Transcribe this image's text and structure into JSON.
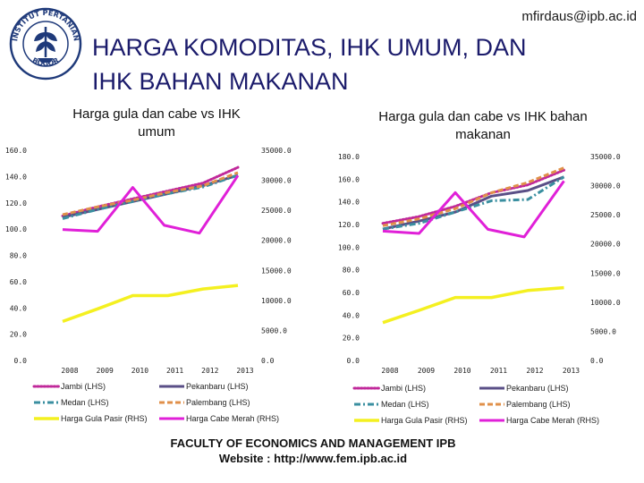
{
  "header": {
    "email": "mfirdaus@ipb.ac.id",
    "title_line1": "HARGA KOMODITAS, IHK UMUM, DAN",
    "title_line2": "IHK BAHAN MAKANAN",
    "logo_text": "INSTITUT PERTANIAN BOGOR"
  },
  "footer": {
    "line1": "FACULTY OF ECONOMICS AND MANAGEMENT IPB",
    "line2": "Website : http://www.fem.ipb.ac.id"
  },
  "colors": {
    "jambi": "#c0289a",
    "pekanbaru": "#5a4f87",
    "medan": "#3a8fa0",
    "palembang": "#e0904a",
    "gula": "#f4f020",
    "cabe": "#e020d8"
  },
  "chart_data": [
    {
      "type": "line",
      "title_line1": "Harga gula dan cabe vs IHK",
      "title_line2": "umum",
      "categories": [
        "2008",
        "2009",
        "2010",
        "2011",
        "2012",
        "2013"
      ],
      "y_left": {
        "min": 0,
        "max": 160,
        "ticks": [
          "0.0",
          "20.0",
          "40.0",
          "60.0",
          "80.0",
          "100.0",
          "120.0",
          "140.0",
          "160.0"
        ]
      },
      "y_right": {
        "min": 0,
        "max": 35000,
        "ticks": [
          "0.0",
          "5000.0",
          "10000.0",
          "15000.0",
          "20000.0",
          "25000.0",
          "30000.0",
          "35000.0"
        ]
      },
      "legend_placement": "bottom",
      "series": [
        {
          "name": "Jambi (LHS)",
          "key": "jambi",
          "axis": "left",
          "style": "dotted",
          "x": [
            2008,
            2009,
            2010,
            2011,
            2012,
            2013
          ],
          "values": [
            110,
            117,
            123,
            129,
            135,
            147
          ]
        },
        {
          "name": "Pekanbaru (LHS)",
          "key": "pekanbaru",
          "axis": "left",
          "style": "solid",
          "x": [
            2008,
            2009,
            2010,
            2011,
            2012,
            2013
          ],
          "values": [
            109,
            115,
            121,
            127,
            133,
            141
          ]
        },
        {
          "name": "Medan (LHS)",
          "key": "medan",
          "axis": "left",
          "style": "dashdot",
          "x": [
            2008,
            2009,
            2010,
            2011,
            2012,
            2013
          ],
          "values": [
            108,
            115,
            121,
            127,
            132,
            141
          ]
        },
        {
          "name": "Palembang (LHS)",
          "key": "palembang",
          "axis": "left",
          "style": "dashed",
          "x": [
            2008,
            2009,
            2010,
            2011,
            2012,
            2013
          ],
          "values": [
            111,
            117,
            122,
            128,
            133,
            143
          ]
        },
        {
          "name": "Harga Gula Pasir (RHS)",
          "key": "gula",
          "axis": "right",
          "style": "solid",
          "x": [
            2008,
            2009,
            2010,
            2011,
            2012,
            2013
          ],
          "values": [
            6500,
            8600,
            10800,
            10800,
            11900,
            12500
          ]
        },
        {
          "name": "Harga Cabe Merah (RHS)",
          "key": "cabe",
          "axis": "right",
          "style": "solid",
          "x": [
            2008,
            2009,
            2010,
            2010.9,
            2011.9,
            2013
          ],
          "values": [
            21800,
            21500,
            28800,
            22500,
            21200,
            30800
          ]
        }
      ]
    },
    {
      "type": "line",
      "title_line1": "Harga gula dan cabe vs IHK bahan",
      "title_line2": "makanan",
      "categories": [
        "2008",
        "2009",
        "2010",
        "2011",
        "2012",
        "2013"
      ],
      "y_left": {
        "min": 0,
        "max": 180,
        "ticks": [
          "0.0",
          "20.0",
          "40.0",
          "60.0",
          "80.0",
          "100.0",
          "120.0",
          "140.0",
          "160.0",
          "180.0"
        ]
      },
      "y_right": {
        "min": 0,
        "max": 35000,
        "ticks": [
          "0.0",
          "5000.0",
          "10000.0",
          "15000.0",
          "20000.0",
          "25000.0",
          "30000.0",
          "35000.0"
        ]
      },
      "legend_placement": "bottom",
      "series": [
        {
          "name": "Jambi (LHS)",
          "key": "jambi",
          "axis": "left",
          "style": "dotted",
          "x": [
            2008,
            2009,
            2010,
            2011,
            2012,
            2013
          ],
          "values": [
            121,
            127,
            136,
            148,
            155,
            168
          ]
        },
        {
          "name": "Pekanbaru (LHS)",
          "key": "pekanbaru",
          "axis": "left",
          "style": "solid",
          "x": [
            2008,
            2009,
            2010,
            2011,
            2012,
            2013
          ],
          "values": [
            116,
            123,
            131,
            145,
            150,
            162
          ]
        },
        {
          "name": "Medan (LHS)",
          "key": "medan",
          "axis": "left",
          "style": "dashdot",
          "x": [
            2008,
            2009,
            2010,
            2011,
            2012,
            2013
          ],
          "values": [
            116,
            121,
            131,
            141,
            142,
            162
          ]
        },
        {
          "name": "Palembang (LHS)",
          "key": "palembang",
          "axis": "left",
          "style": "dashed",
          "x": [
            2008,
            2009,
            2010,
            2011,
            2012,
            2013
          ],
          "values": [
            119,
            125,
            134,
            148,
            157,
            170
          ]
        },
        {
          "name": "Harga Gula Pasir (RHS)",
          "key": "gula",
          "axis": "right",
          "style": "solid",
          "x": [
            2008,
            2009,
            2010,
            2011,
            2012,
            2013
          ],
          "values": [
            6500,
            8600,
            10800,
            10800,
            12000,
            12500
          ]
        },
        {
          "name": "Harga Cabe Merah (RHS)",
          "key": "cabe",
          "axis": "right",
          "style": "solid",
          "x": [
            2008,
            2009,
            2010,
            2010.9,
            2011.9,
            2013
          ],
          "values": [
            22200,
            21800,
            28800,
            22500,
            21200,
            30800
          ]
        }
      ]
    }
  ]
}
